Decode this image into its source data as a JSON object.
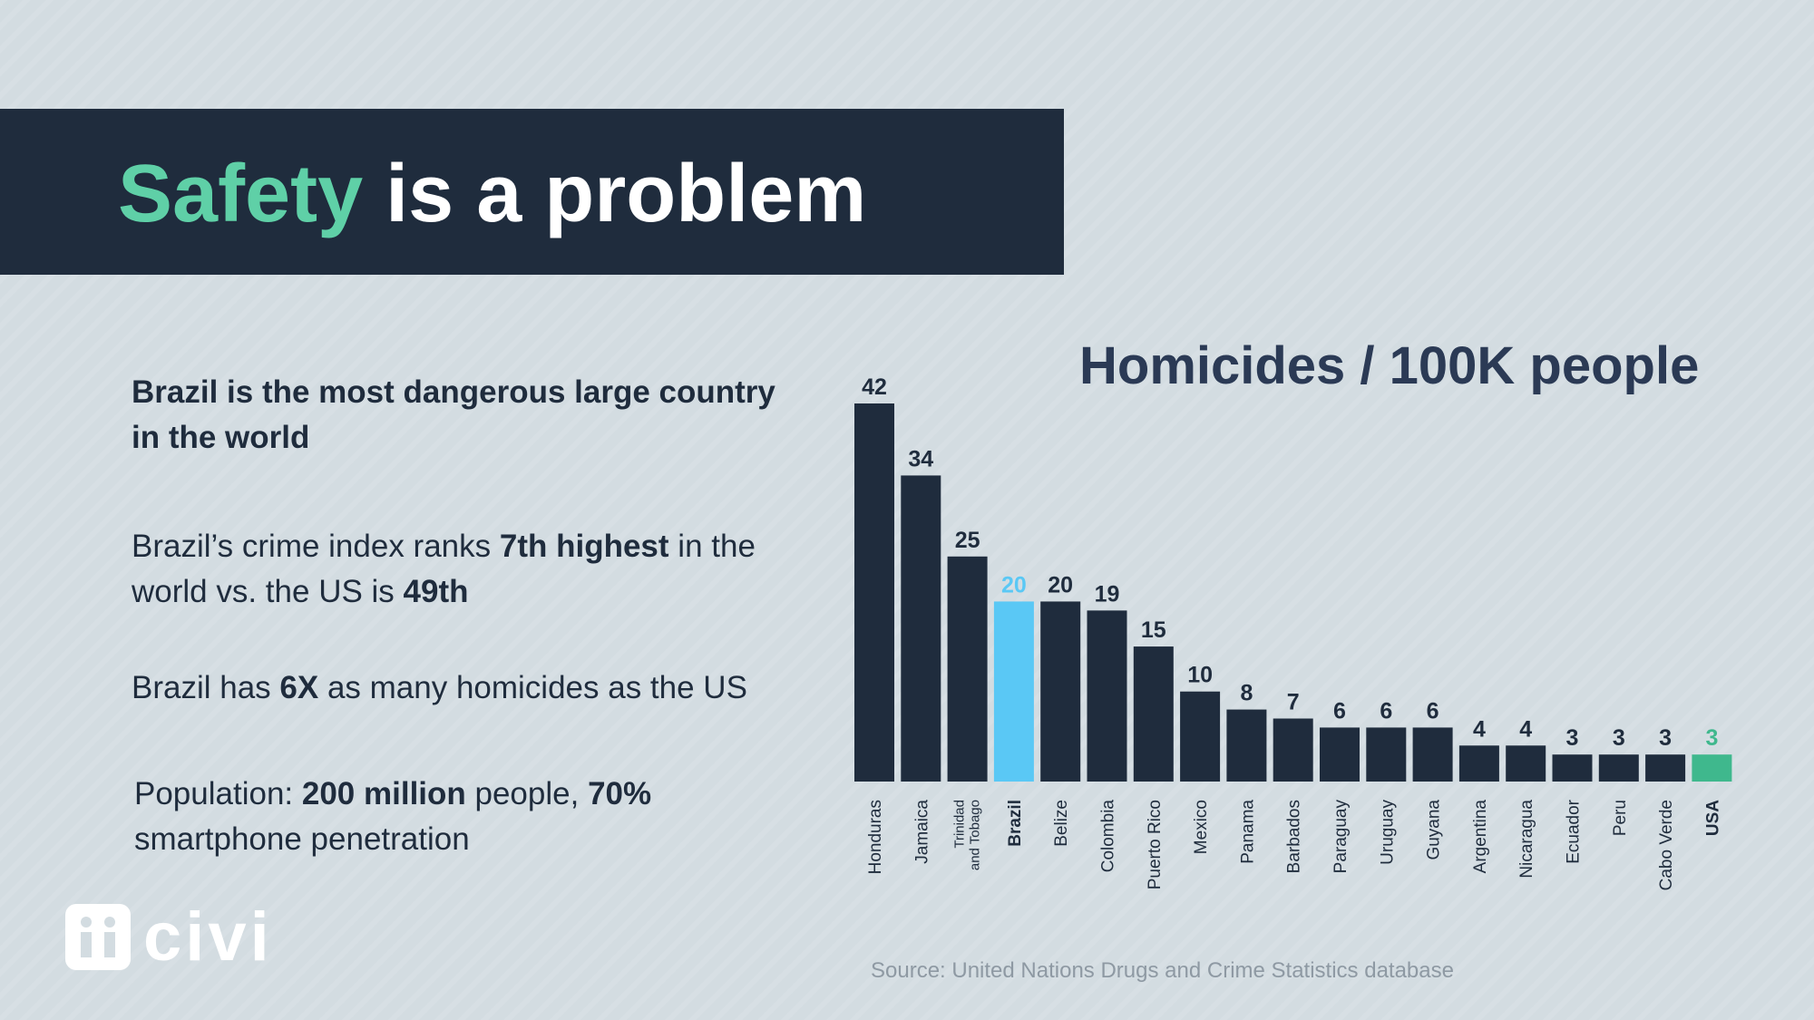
{
  "header": {
    "title_accent": "Safety",
    "title_rest": " is a problem",
    "accent_color": "#5fd0a7",
    "banner_color": "#1f2c3d"
  },
  "bullets": {
    "b1": "Brazil is the most dangerous large country in the world",
    "b2": {
      "pre": "Brazil’s crime index ranks ",
      "rank": "7th highest",
      "mid": " in the world vs. the US is ",
      "us_rank": "49th"
    },
    "b3": {
      "pre": "Brazil has ",
      "multiple": "6X",
      "post": " as many homicides as the US"
    },
    "b4": {
      "pre": "Population: ",
      "population": "200 million",
      "mid": " people, ",
      "penetration": "70%",
      "post": " smartphone penetration"
    }
  },
  "chart_data": {
    "type": "bar",
    "title": "Homicides / 100K people",
    "categories": [
      "Honduras",
      "Jamaica",
      "Trinidad and Tobago",
      "Brazil",
      "Belize",
      "Colombia",
      "Puerto Rico",
      "Mexico",
      "Panama",
      "Barbados",
      "Paraguay",
      "Uruguay",
      "Guyana",
      "Argentina",
      "Nicaragua",
      "Ecuador",
      "Peru",
      "Cabo Verde",
      "USA"
    ],
    "values": [
      42,
      34,
      25,
      20,
      20,
      19,
      15,
      10,
      8,
      7,
      6,
      6,
      6,
      4,
      4,
      3,
      3,
      3,
      3
    ],
    "highlight": {
      "Brazil": "#5ac8f5",
      "USA": "#3fb88d"
    },
    "default_color": "#1f2c3d",
    "ylim": [
      0,
      42
    ],
    "grid": false,
    "legend": "none"
  },
  "source": "Source: United Nations Drugs and Crime Statistics database",
  "logo": {
    "text": "civi"
  }
}
